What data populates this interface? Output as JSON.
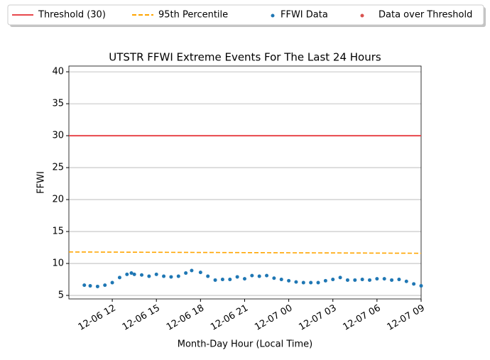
{
  "chart_data": {
    "type": "scatter",
    "title": "UTSTR FFWI Extreme Events For The Last 24 Hours",
    "x_label": "Month-Day Hour (Local Time)",
    "y_label": "FFWI",
    "xlim": [
      9.05,
      33
    ],
    "ylim": [
      4.45,
      40.9
    ],
    "xticks": [
      {
        "value": 12,
        "label": "12-06 12"
      },
      {
        "value": 15,
        "label": "12-06 15"
      },
      {
        "value": 18,
        "label": "12-06 18"
      },
      {
        "value": 21,
        "label": "12-06 21"
      },
      {
        "value": 24,
        "label": "12-07 00"
      },
      {
        "value": 27,
        "label": "12-07 03"
      },
      {
        "value": 30,
        "label": "12-07 06"
      },
      {
        "value": 33,
        "label": "12-07 09"
      }
    ],
    "yticks": [
      5,
      10,
      15,
      20,
      25,
      30,
      35,
      40
    ],
    "grid": true,
    "legend": "top",
    "series": [
      {
        "name": "Threshold (30)",
        "color": "#e8474c",
        "kind": "line",
        "x": [
          9.05,
          33
        ],
        "values": [
          30,
          30
        ]
      },
      {
        "name": "95th Percentile",
        "color": "#ffa500",
        "kind": "dashed",
        "x": [
          9.05,
          33
        ],
        "values": [
          11.8,
          11.6
        ]
      },
      {
        "name": "FFWI Data",
        "color": "#1f77b4",
        "kind": "scatter",
        "x": [
          10.1,
          10.5,
          11,
          11.5,
          12,
          12.5,
          13,
          13.3,
          13.5,
          14,
          14.5,
          15,
          15.5,
          16,
          16.5,
          17,
          17.4,
          18,
          18.5,
          19,
          19.5,
          20,
          20.5,
          21,
          21.5,
          22,
          22.5,
          23,
          23.5,
          24,
          24.5,
          25,
          25.5,
          26,
          26.5,
          27,
          27.5,
          28,
          28.5,
          29,
          29.5,
          30,
          30.5,
          31,
          31.5,
          32,
          32.5,
          33
        ],
        "values": [
          6.6,
          6.5,
          6.4,
          6.6,
          7.0,
          7.8,
          8.3,
          8.5,
          8.3,
          8.2,
          8.0,
          8.3,
          8.0,
          7.9,
          8.0,
          8.5,
          8.9,
          8.6,
          8.0,
          7.4,
          7.5,
          7.5,
          7.9,
          7.6,
          8.1,
          8.0,
          8.1,
          7.7,
          7.5,
          7.3,
          7.1,
          7.0,
          7.0,
          7.0,
          7.3,
          7.5,
          7.8,
          7.4,
          7.4,
          7.5,
          7.4,
          7.6,
          7.6,
          7.4,
          7.5,
          7.2,
          6.8,
          6.5
        ]
      },
      {
        "name": "Data over Threshold",
        "color": "#d9534f",
        "kind": "scatter",
        "x": [],
        "values": []
      }
    ]
  }
}
